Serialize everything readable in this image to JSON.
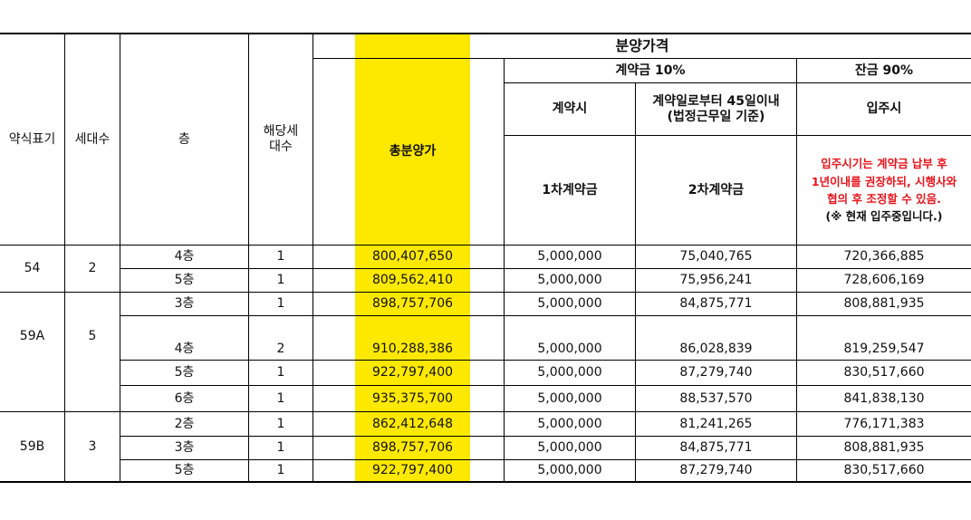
{
  "header": {
    "type_label": "약식표기",
    "households_label": "세대수",
    "floor_label": "층",
    "applicable_households_label": [
      "해당세",
      "대수"
    ],
    "total_price_label": "총분양가",
    "sale_price_label": "분양가격",
    "deposit_label": "계약금 10%",
    "balance_label": "잔금 90%",
    "at_contract_label": "계약시",
    "within_45_days_label": [
      "계약일로부터 45일이내",
      "(법정근무일 기준)"
    ],
    "move_in_label": "입주시",
    "first_deposit_label": "1차계약금",
    "second_deposit_label": "2차계약금",
    "move_in_note_lines": [
      "입주시기는 계약금 납부 후",
      "1년이내를 권장하되, 시행사와",
      "협의 후 조정할 수 있음."
    ],
    "move_in_note_current": "(※ 현재 입주중입니다.)"
  },
  "groups": [
    {
      "type": "54",
      "households": "2"
    },
    {
      "type": "59A",
      "households": "5"
    },
    {
      "type": "59B",
      "households": "3"
    }
  ],
  "rows": [
    {
      "floor": "4층",
      "count": "1",
      "total": "800,407,650",
      "first": "5,000,000",
      "second": "75,040,765",
      "balance": "720,366,885"
    },
    {
      "floor": "5층",
      "count": "1",
      "total": "809,562,410",
      "first": "5,000,000",
      "second": "75,956,241",
      "balance": "728,606,169"
    },
    {
      "floor": "3층",
      "count": "1",
      "total": "898,757,706",
      "first": "5,000,000",
      "second": "84,875,771",
      "balance": "808,881,935"
    },
    {
      "floor": "4층",
      "count": "2",
      "total": "910,288,386",
      "first": "5,000,000",
      "second": "86,028,839",
      "balance": "819,259,547"
    },
    {
      "floor": "5층",
      "count": "1",
      "total": "922,797,400",
      "first": "5,000,000",
      "second": "87,279,740",
      "balance": "830,517,660"
    },
    {
      "floor": "6층",
      "count": "1",
      "total": "935,375,700",
      "first": "5,000,000",
      "second": "88,537,570",
      "balance": "841,838,130"
    },
    {
      "floor": "2층",
      "count": "1",
      "total": "862,412,648",
      "first": "5,000,000",
      "second": "81,241,265",
      "balance": "776,171,383"
    },
    {
      "floor": "3층",
      "count": "1",
      "total": "898,757,706",
      "first": "5,000,000",
      "second": "84,875,771",
      "balance": "808,881,935"
    },
    {
      "floor": "5층",
      "count": "1",
      "total": "922,797,400",
      "first": "5,000,000",
      "second": "87,279,740",
      "balance": "830,517,660"
    }
  ]
}
